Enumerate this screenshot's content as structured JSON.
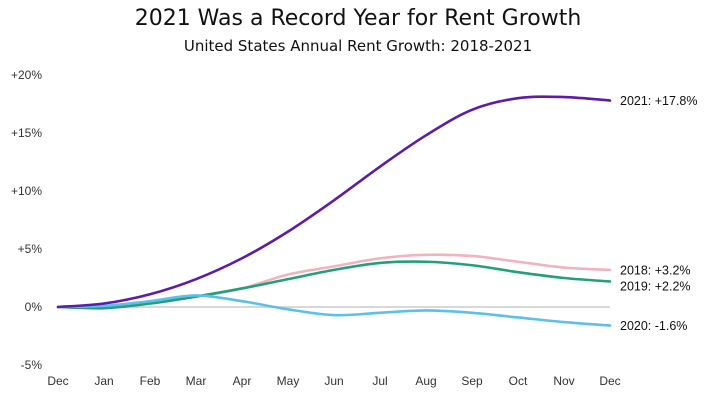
{
  "chart_data": {
    "type": "line",
    "title": "2021 Was a Record Year for Rent Growth",
    "subtitle": "United States Annual Rent Growth: 2018-2021",
    "xlabel": "",
    "ylabel": "",
    "categories": [
      "Dec",
      "Jan",
      "Feb",
      "Mar",
      "Apr",
      "May",
      "Jun",
      "Jul",
      "Aug",
      "Sep",
      "Oct",
      "Nov",
      "Dec"
    ],
    "ylim": [
      -5,
      20
    ],
    "yticks": [
      -5,
      0,
      5,
      10,
      15,
      20
    ],
    "ytick_labels": [
      "-5%",
      "0%",
      "+5%",
      "+10%",
      "+15%",
      "+20%"
    ],
    "zero_line": true,
    "grid": false,
    "series": [
      {
        "name": "2018",
        "label": "2018: +3.2%",
        "color": "#f0b3c0",
        "values": [
          0,
          0.0,
          0.3,
          0.9,
          1.6,
          2.8,
          3.5,
          4.2,
          4.5,
          4.4,
          3.9,
          3.4,
          3.2
        ]
      },
      {
        "name": "2019",
        "label": "2019: +2.2%",
        "color": "#22a07a",
        "values": [
          0,
          -0.1,
          0.3,
          0.9,
          1.6,
          2.4,
          3.2,
          3.8,
          3.9,
          3.6,
          3.0,
          2.5,
          2.2
        ]
      },
      {
        "name": "2020",
        "label": "2020: -1.6%",
        "color": "#5bc0eb",
        "values": [
          0,
          0.1,
          0.5,
          1.0,
          0.5,
          -0.2,
          -0.7,
          -0.5,
          -0.3,
          -0.5,
          -0.9,
          -1.3,
          -1.6
        ]
      },
      {
        "name": "2021",
        "label": "2021: +17.8%",
        "color": "#5e1aa8",
        "values": [
          0,
          0.3,
          1.1,
          2.4,
          4.2,
          6.5,
          9.2,
          12.1,
          14.8,
          17.0,
          18.0,
          18.1,
          17.8
        ]
      }
    ],
    "zero_line_color": "#cccccc",
    "axis_text_color": "#333333"
  }
}
